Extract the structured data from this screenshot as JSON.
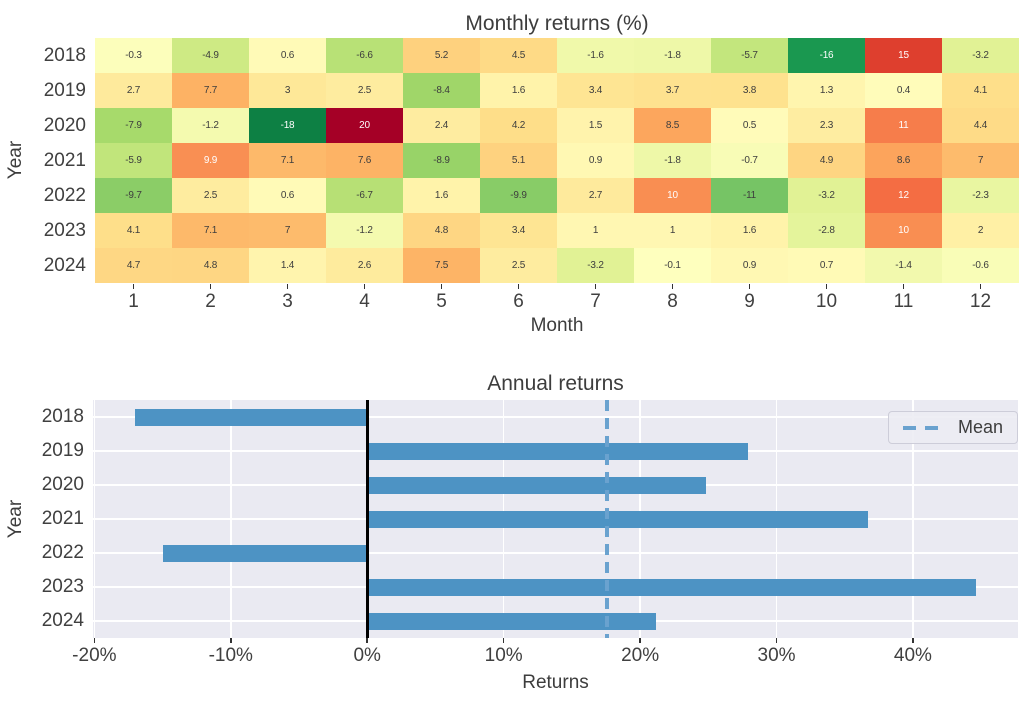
{
  "page": {
    "background": "#ffffff",
    "text_color": "#3d3d3d"
  },
  "chart_data": [
    {
      "type": "heatmap",
      "title": "Monthly returns (%)",
      "xlabel": "Month",
      "ylabel": "Year",
      "rows": [
        "2018",
        "2019",
        "2020",
        "2021",
        "2022",
        "2023",
        "2024"
      ],
      "columns": [
        "1",
        "2",
        "3",
        "4",
        "5",
        "6",
        "7",
        "8",
        "9",
        "10",
        "11",
        "12"
      ],
      "values": [
        [
          -0.3,
          -4.9,
          0.6,
          -6.6,
          5.2,
          4.5,
          -1.6,
          -1.8,
          -5.7,
          -16,
          15,
          -3.2
        ],
        [
          2.7,
          7.7,
          3,
          2.5,
          -8.4,
          1.6,
          3.4,
          3.7,
          3.8,
          1.3,
          0.4,
          4.1
        ],
        [
          -7.9,
          -1.2,
          -18,
          20,
          2.4,
          4.2,
          1.5,
          8.5,
          0.5,
          2.3,
          11,
          4.4
        ],
        [
          -5.9,
          9.9,
          7.1,
          7.6,
          -8.9,
          5.1,
          0.9,
          -1.8,
          -0.7,
          4.9,
          8.6,
          7
        ],
        [
          -9.7,
          2.5,
          0.6,
          -6.7,
          1.6,
          -9.9,
          2.7,
          10,
          -11,
          -3.2,
          12,
          -2.3
        ],
        [
          4.1,
          7.1,
          7,
          -1.2,
          4.8,
          3.4,
          1,
          1,
          1.6,
          -2.8,
          10,
          2
        ],
        [
          4.7,
          4.8,
          1.4,
          2.6,
          7.5,
          2.5,
          -3.2,
          -0.1,
          0.9,
          0.7,
          -1.4,
          -0.6
        ]
      ],
      "vmin": -20,
      "vmax": 20,
      "colormap": "RdYlGn_r",
      "colormap_anchors": [
        "#006837",
        "#1a9850",
        "#66bd63",
        "#a6d96a",
        "#d9ef8b",
        "#ffffbf",
        "#fee08b",
        "#fdae61",
        "#f46d43",
        "#d73027",
        "#a50026"
      ],
      "annotation_dark_color": "#3d3d3d",
      "annotation_light_color": "#ffffff",
      "grid": false
    },
    {
      "type": "bar",
      "orientation": "horizontal",
      "title": "Annual returns",
      "xlabel": "Returns",
      "ylabel": "Year",
      "categories": [
        "2018",
        "2019",
        "2020",
        "2021",
        "2022",
        "2023",
        "2024"
      ],
      "values": [
        -17.0,
        27.9,
        24.8,
        36.7,
        -15.0,
        44.6,
        21.2
      ],
      "mean": 17.6,
      "xlim": [
        -20.1,
        47.7
      ],
      "xtick_values": [
        -20,
        -10,
        0,
        10,
        20,
        30,
        40
      ],
      "xtick_labels": [
        "-20%",
        "-10%",
        "0%",
        "10%",
        "20%",
        "30%",
        "40%"
      ],
      "bar_color": "#4d93c4",
      "mean_line_color": "#6aa2cf",
      "zero_line_color": "#000000",
      "plot_bg": "#eaeaf2",
      "grid_color": "#ffffff",
      "grid": true,
      "legend": {
        "label": "Mean",
        "position": "upper right"
      }
    }
  ]
}
